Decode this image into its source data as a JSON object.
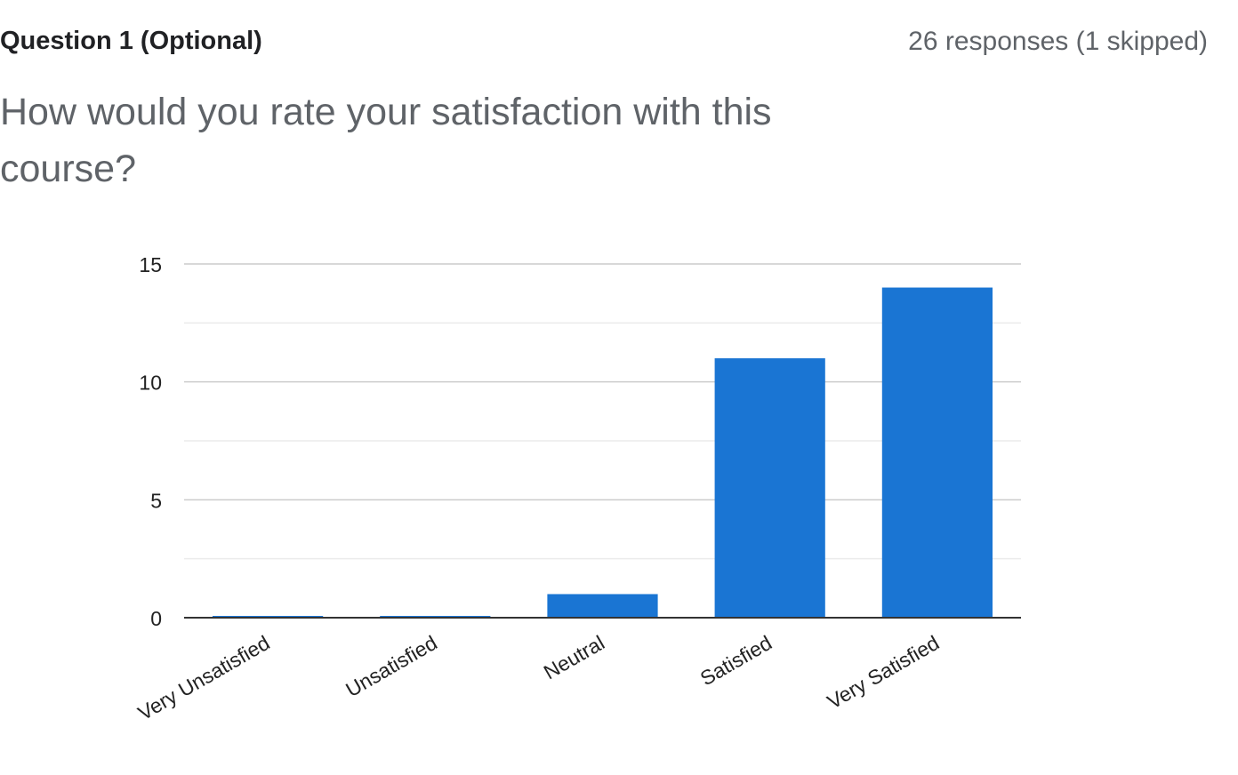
{
  "question": {
    "label": "Question 1 (Optional)",
    "responses": "26 responses (1 skipped)",
    "text": "How would you rate your satisfaction with this course?"
  },
  "colors": {
    "bar": "#1a75d3",
    "grid_major": "#cccccc",
    "grid_minor": "#ebebeb",
    "axis": "#333333",
    "tick_text": "#222222"
  },
  "chart_data": {
    "type": "bar",
    "title": "How would you rate your satisfaction with this course?",
    "xlabel": "",
    "ylabel": "",
    "categories": [
      "Very Unsatisfied",
      "Unsatisfied",
      "Neutral",
      "Satisfied",
      "Very Satisfied"
    ],
    "values": [
      0,
      0,
      1,
      11,
      14
    ],
    "ylim": [
      0,
      15
    ],
    "yticks": [
      0,
      5,
      10,
      15
    ],
    "yticks_labels": [
      "0",
      "5",
      "10",
      "15"
    ],
    "grid": true,
    "legend": "none"
  }
}
